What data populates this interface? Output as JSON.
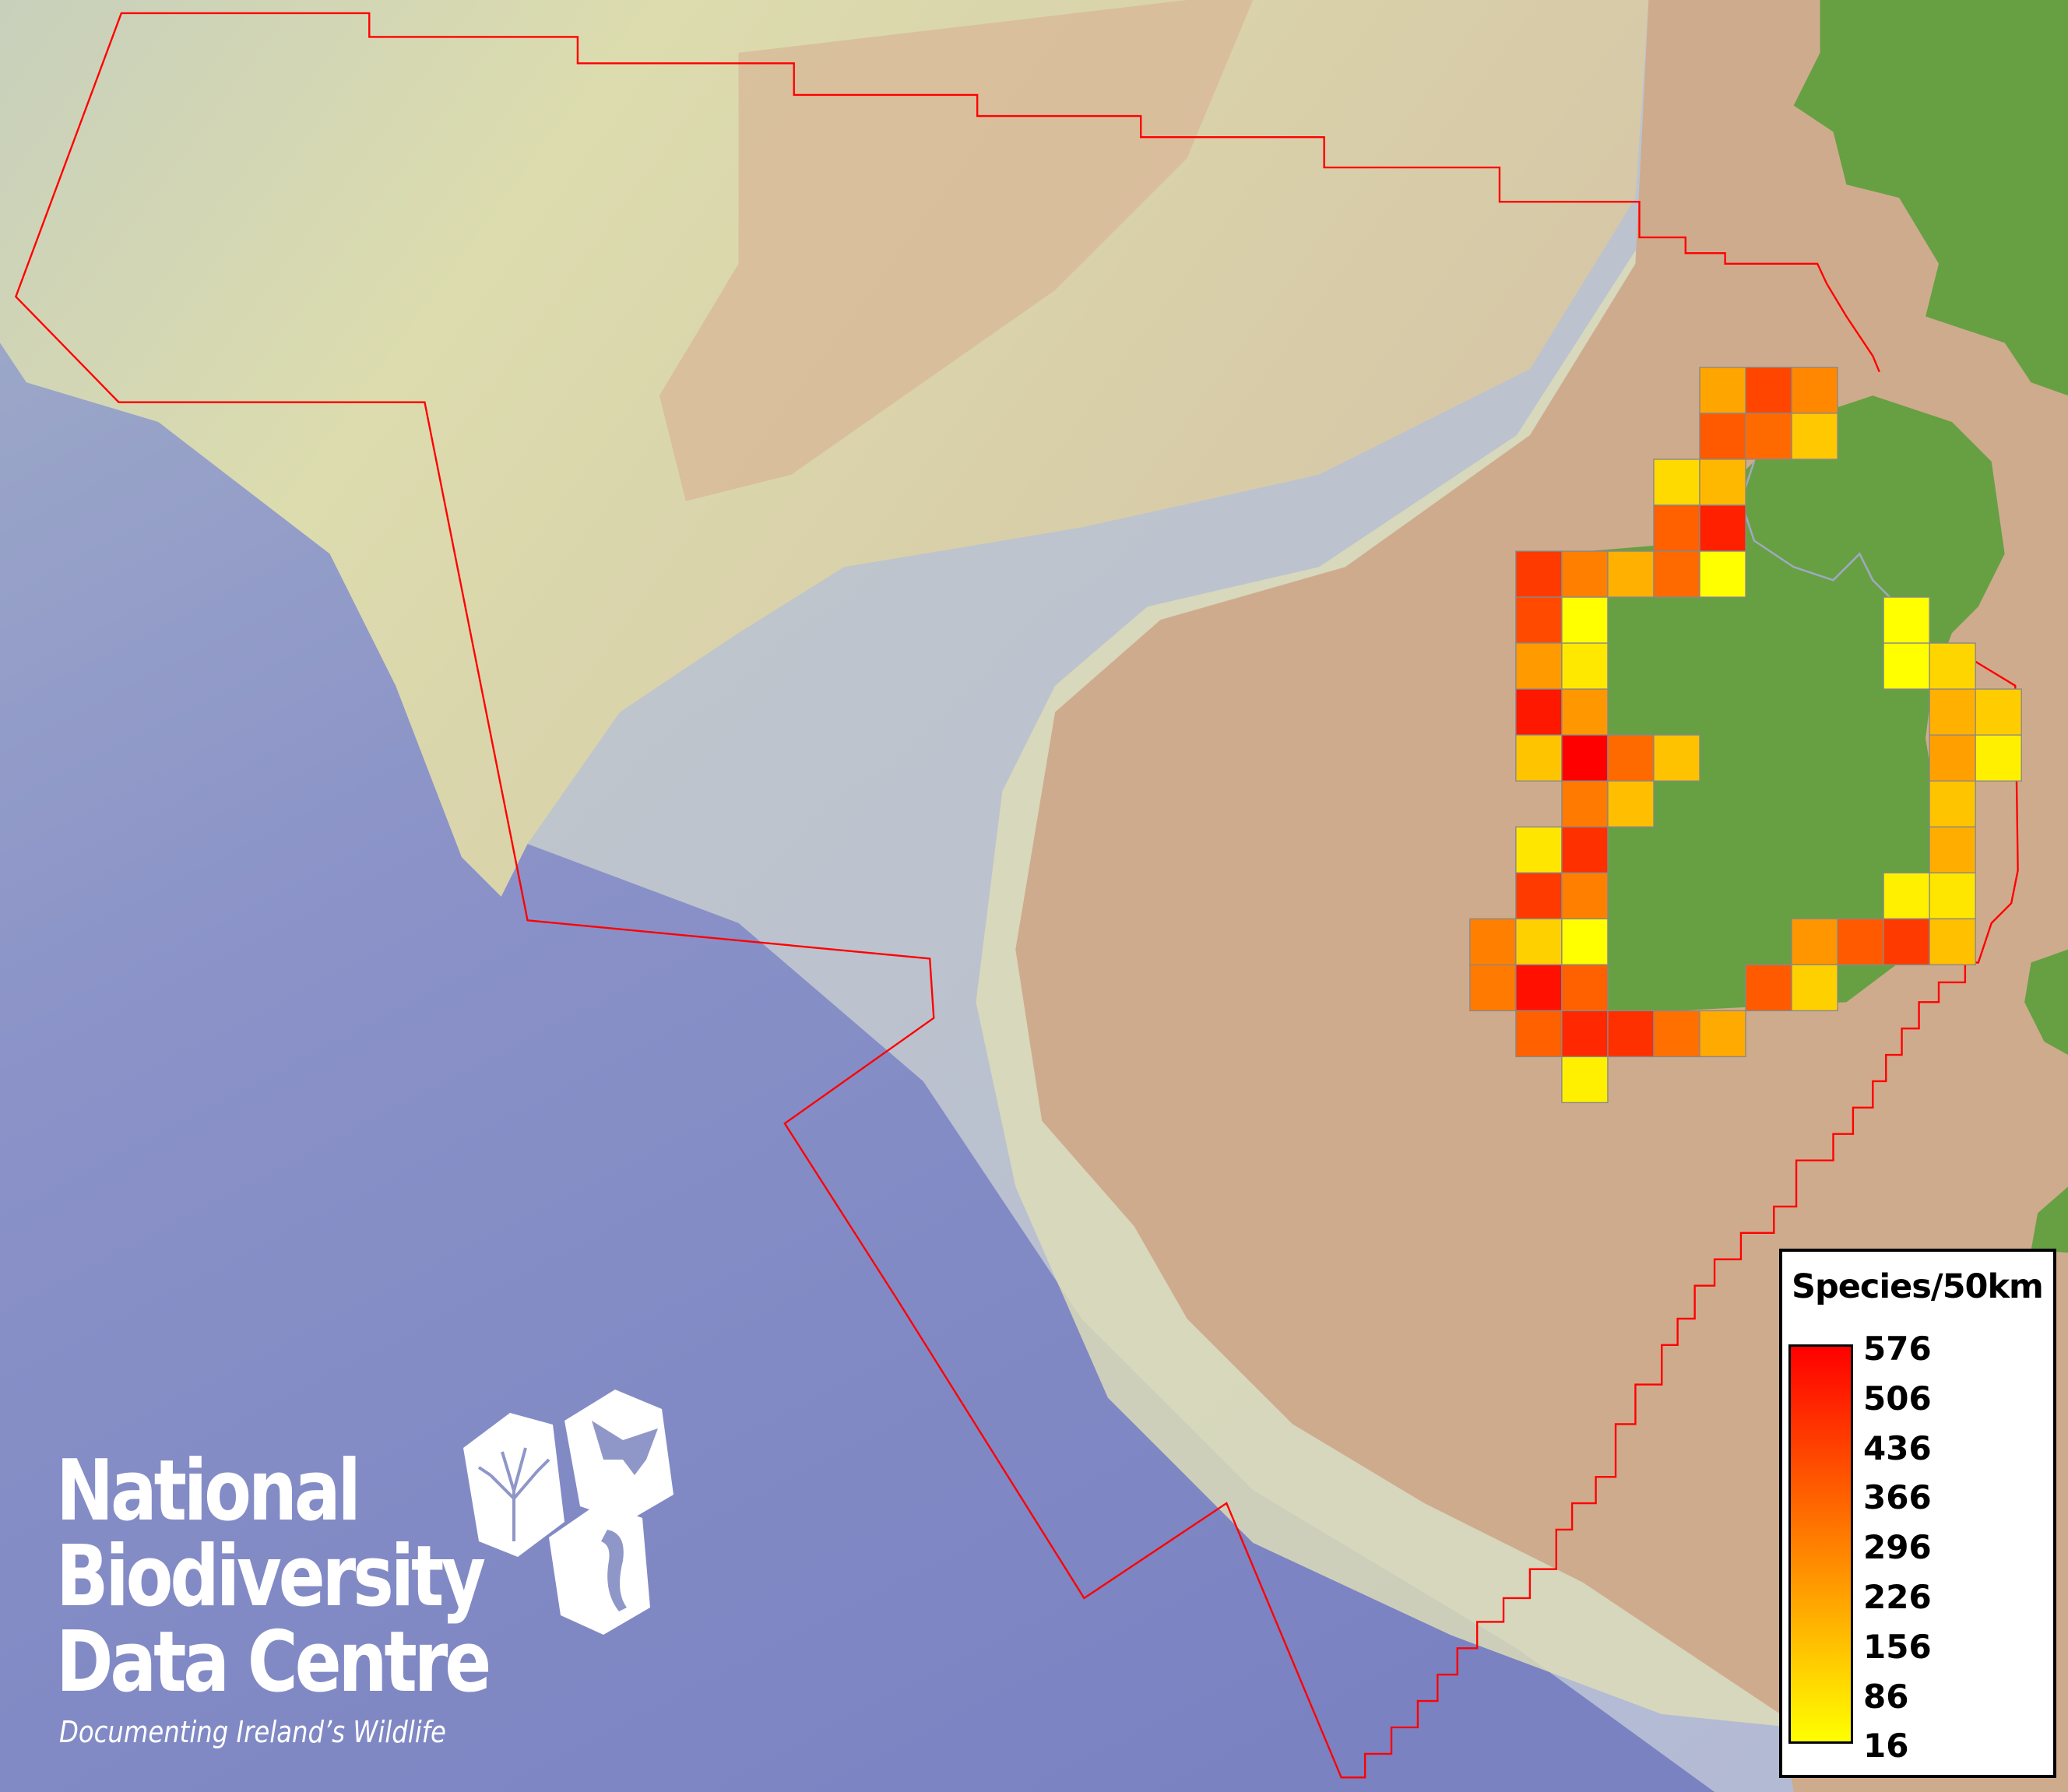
{
  "map": {
    "colors": {
      "deep_sea": "#8088c4",
      "shelf": "#d8d8b0",
      "slope": "#c4ccd6",
      "land_tan": "#cfab8d",
      "land_green": "#66a043",
      "boundary": "#ff0000",
      "grid_outline": "#888888"
    },
    "grid_cells": [
      {
        "col": 5,
        "row": 0,
        "value": 214
      },
      {
        "col": 6,
        "row": 0,
        "value": 424
      },
      {
        "col": 7,
        "row": 0,
        "value": 277
      },
      {
        "col": 5,
        "row": 1,
        "value": 378
      },
      {
        "col": 6,
        "row": 1,
        "value": 343
      },
      {
        "col": 7,
        "row": 1,
        "value": 137
      },
      {
        "col": 4,
        "row": 2,
        "value": 97
      },
      {
        "col": 5,
        "row": 2,
        "value": 172
      },
      {
        "col": 4,
        "row": 3,
        "value": 365
      },
      {
        "col": 5,
        "row": 3,
        "value": 506
      },
      {
        "col": 1,
        "row": 4,
        "value": 449
      },
      {
        "col": 2,
        "row": 4,
        "value": 295
      },
      {
        "col": 3,
        "row": 4,
        "value": 189
      },
      {
        "col": 4,
        "row": 4,
        "value": 343
      },
      {
        "col": 5,
        "row": 4,
        "value": 16
      },
      {
        "col": 1,
        "row": 5,
        "value": 413
      },
      {
        "col": 2,
        "row": 5,
        "value": 16
      },
      {
        "col": 9,
        "row": 5,
        "value": 16
      },
      {
        "col": 1,
        "row": 6,
        "value": 238
      },
      {
        "col": 2,
        "row": 6,
        "value": 67
      },
      {
        "col": 9,
        "row": 6,
        "value": 16
      },
      {
        "col": 10,
        "row": 6,
        "value": 108
      },
      {
        "col": 1,
        "row": 7,
        "value": 523
      },
      {
        "col": 2,
        "row": 7,
        "value": 242
      },
      {
        "col": 10,
        "row": 7,
        "value": 189
      },
      {
        "col": 11,
        "row": 7,
        "value": 128
      },
      {
        "col": 1,
        "row": 8,
        "value": 146
      },
      {
        "col": 2,
        "row": 8,
        "value": 576
      },
      {
        "col": 3,
        "row": 8,
        "value": 343
      },
      {
        "col": 4,
        "row": 8,
        "value": 150
      },
      {
        "col": 10,
        "row": 8,
        "value": 225
      },
      {
        "col": 11,
        "row": 8,
        "value": 49
      },
      {
        "col": 2,
        "row": 9,
        "value": 308
      },
      {
        "col": 3,
        "row": 9,
        "value": 159
      },
      {
        "col": 10,
        "row": 9,
        "value": 146
      },
      {
        "col": 1,
        "row": 10,
        "value": 71
      },
      {
        "col": 2,
        "row": 10,
        "value": 471
      },
      {
        "col": 10,
        "row": 10,
        "value": 194
      },
      {
        "col": 1,
        "row": 11,
        "value": 449
      },
      {
        "col": 2,
        "row": 11,
        "value": 295
      },
      {
        "col": 9,
        "row": 11,
        "value": 49
      },
      {
        "col": 10,
        "row": 11,
        "value": 71
      },
      {
        "col": 0,
        "row": 12,
        "value": 295
      },
      {
        "col": 1,
        "row": 12,
        "value": 119
      },
      {
        "col": 2,
        "row": 12,
        "value": 16
      },
      {
        "col": 7,
        "row": 12,
        "value": 247
      },
      {
        "col": 8,
        "row": 12,
        "value": 378
      },
      {
        "col": 9,
        "row": 12,
        "value": 449
      },
      {
        "col": 10,
        "row": 12,
        "value": 154
      },
      {
        "col": 0,
        "row": 13,
        "value": 308
      },
      {
        "col": 1,
        "row": 13,
        "value": 541
      },
      {
        "col": 2,
        "row": 13,
        "value": 365
      },
      {
        "col": 6,
        "row": 13,
        "value": 378
      },
      {
        "col": 7,
        "row": 13,
        "value": 119
      },
      {
        "col": 1,
        "row": 14,
        "value": 365
      },
      {
        "col": 2,
        "row": 14,
        "value": 488
      },
      {
        "col": 3,
        "row": 14,
        "value": 471
      },
      {
        "col": 4,
        "row": 14,
        "value": 330
      },
      {
        "col": 5,
        "row": 14,
        "value": 203
      },
      {
        "col": 2,
        "row": 15,
        "value": 49
      }
    ]
  },
  "legend": {
    "title": "Species/50km",
    "min": 16,
    "max": 576,
    "color_low": "#ffff00",
    "color_high": "#ff0000",
    "labels": [
      "576",
      "506",
      "436",
      "366",
      "296",
      "226",
      "156",
      "86",
      "16"
    ]
  },
  "logo": {
    "line1": "National",
    "line2": "Biodiversity",
    "line3": "Data Centre",
    "tagline": "Documenting Ireland’s Wildlife",
    "icons": [
      "tree-icon",
      "butterfly-icon",
      "seahorse-icon"
    ]
  }
}
